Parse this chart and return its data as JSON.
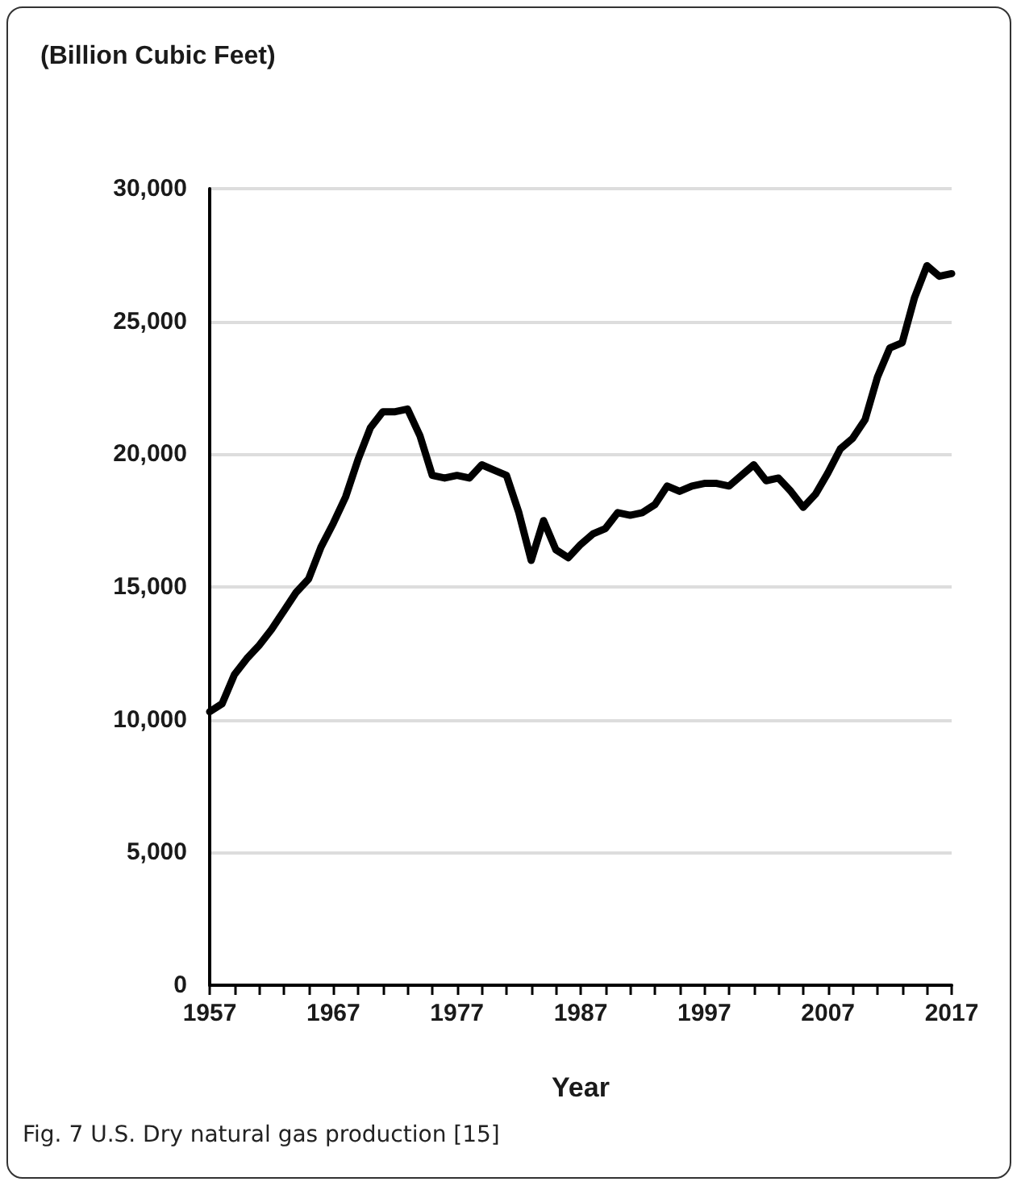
{
  "chart_data": {
    "type": "line",
    "ylabel": "(Billion Cubic Feet)",
    "xlabel": "Year",
    "annotations": [
      "Fig. 7 U.S. Dry natural gas production [15]"
    ],
    "x": [
      1957,
      1958,
      1959,
      1960,
      1961,
      1962,
      1963,
      1964,
      1965,
      1966,
      1967,
      1968,
      1969,
      1970,
      1971,
      1972,
      1973,
      1974,
      1975,
      1976,
      1977,
      1978,
      1979,
      1980,
      1981,
      1982,
      1983,
      1984,
      1985,
      1986,
      1987,
      1988,
      1989,
      1990,
      1991,
      1992,
      1993,
      1994,
      1995,
      1996,
      1997,
      1998,
      1999,
      2000,
      2001,
      2002,
      2003,
      2004,
      2005,
      2006,
      2007,
      2008,
      2009,
      2010,
      2011,
      2012,
      2013,
      2014,
      2015,
      2016,
      2017
    ],
    "series": [
      {
        "color": "#000000",
        "values": [
          10300,
          10600,
          11700,
          12300,
          12800,
          13400,
          14100,
          14800,
          15300,
          16500,
          17400,
          18400,
          19800,
          21000,
          21600,
          21600,
          21700,
          20700,
          19200,
          19100,
          19200,
          19100,
          19600,
          19400,
          19200,
          17800,
          16000,
          17500,
          16400,
          16100,
          16600,
          17000,
          17200,
          17800,
          17700,
          17800,
          18100,
          18800,
          18600,
          18800,
          18900,
          18900,
          18800,
          19200,
          19600,
          19000,
          19100,
          18600,
          18000,
          18500,
          19300,
          20200,
          20600,
          21300,
          22900,
          24000,
          24200,
          25900,
          27100,
          26700,
          26800
        ]
      }
    ],
    "xlim": [
      1957,
      2017
    ],
    "xticks": [
      {
        "value": 1957,
        "label": "1957"
      },
      {
        "value": 1959,
        "label": null
      },
      {
        "value": 1961,
        "label": null
      },
      {
        "value": 1963,
        "label": null
      },
      {
        "value": 1965,
        "label": null
      },
      {
        "value": 1967,
        "label": "1967"
      },
      {
        "value": 1969,
        "label": null
      },
      {
        "value": 1971,
        "label": null
      },
      {
        "value": 1973,
        "label": null
      },
      {
        "value": 1975,
        "label": null
      },
      {
        "value": 1977,
        "label": "1977"
      },
      {
        "value": 1979,
        "label": null
      },
      {
        "value": 1981,
        "label": null
      },
      {
        "value": 1983,
        "label": null
      },
      {
        "value": 1985,
        "label": null
      },
      {
        "value": 1987,
        "label": "1987"
      },
      {
        "value": 1989,
        "label": null
      },
      {
        "value": 1991,
        "label": null
      },
      {
        "value": 1993,
        "label": null
      },
      {
        "value": 1995,
        "label": null
      },
      {
        "value": 1997,
        "label": "1997"
      },
      {
        "value": 1999,
        "label": null
      },
      {
        "value": 2001,
        "label": null
      },
      {
        "value": 2003,
        "label": null
      },
      {
        "value": 2005,
        "label": null
      },
      {
        "value": 2007,
        "label": "2007"
      },
      {
        "value": 2009,
        "label": null
      },
      {
        "value": 2011,
        "label": null
      },
      {
        "value": 2013,
        "label": null
      },
      {
        "value": 2015,
        "label": null
      },
      {
        "value": 2017,
        "label": "2017"
      }
    ],
    "ylim": [
      0,
      30000
    ],
    "yticks": [
      0,
      {
        "value": 5000,
        "label": "5,000"
      },
      {
        "value": 10000,
        "label": "10,000"
      },
      {
        "value": 15000,
        "label": "15,000"
      },
      {
        "value": 20000,
        "label": "20,000"
      },
      {
        "value": 25000,
        "label": "25,000"
      },
      {
        "value": 30000,
        "label": "30,000"
      }
    ],
    "grid": "y",
    "marker": "none",
    "line_style": "solid"
  }
}
